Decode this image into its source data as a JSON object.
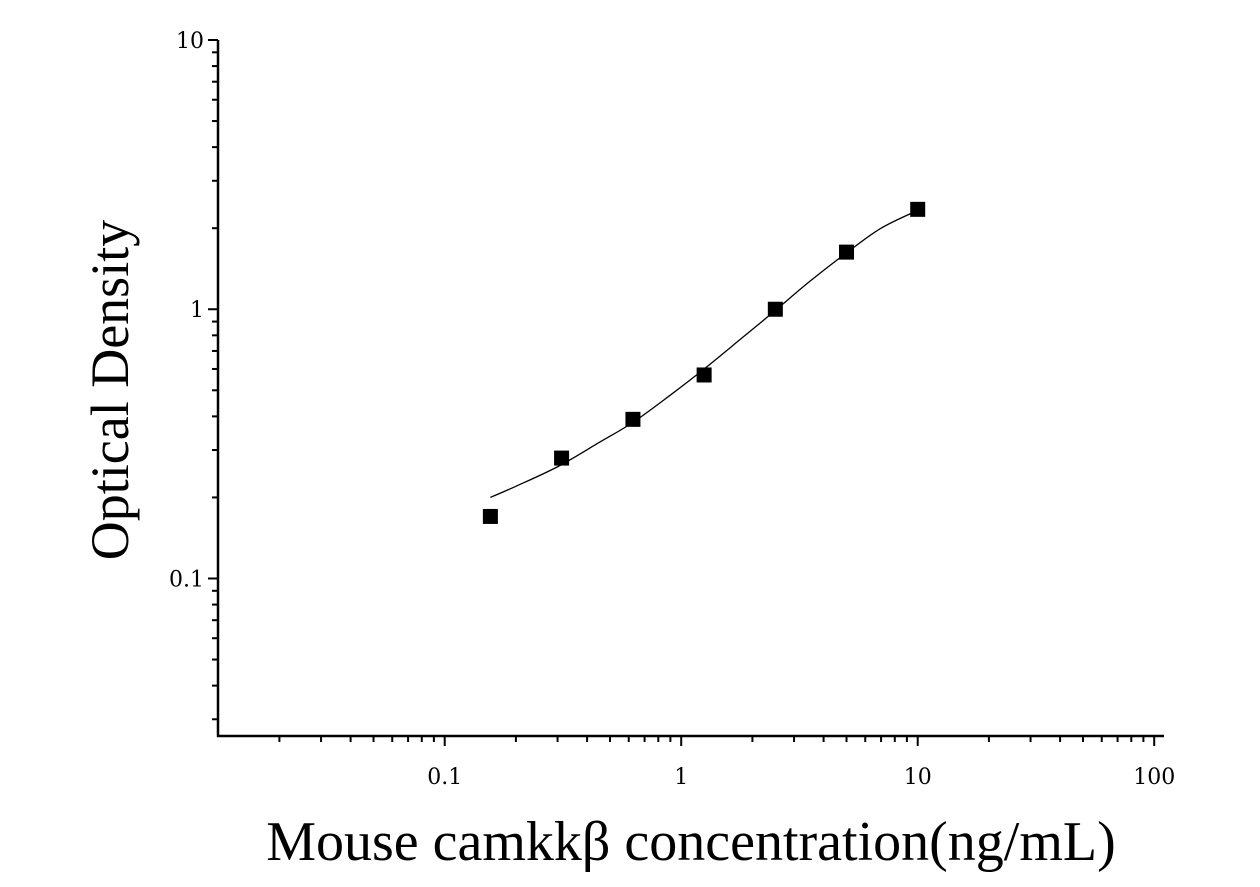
{
  "chart_data": {
    "type": "scatter",
    "title": "",
    "xlabel": "Mouse camkkβ concentration(ng/mL)",
    "ylabel": "Optical Density",
    "x_scale": "log",
    "y_scale": "log",
    "xlim": [
      0.011,
      110
    ],
    "ylim": [
      0.026,
      10
    ],
    "x_ticks": [
      {
        "value": 0.1,
        "label": "0.1"
      },
      {
        "value": 1,
        "label": "1"
      },
      {
        "value": 10,
        "label": "10"
      },
      {
        "value": 100,
        "label": "100"
      }
    ],
    "y_ticks": [
      {
        "value": 0.1,
        "label": "0.1"
      },
      {
        "value": 1,
        "label": "1"
      },
      {
        "value": 10,
        "label": "10"
      }
    ],
    "grid": false,
    "series": [
      {
        "type": "scatter",
        "marker": "square",
        "color": "#000000",
        "x": [
          0.156,
          0.312,
          0.625,
          1.25,
          2.5,
          5,
          10
        ],
        "y": [
          0.17,
          0.28,
          0.39,
          0.57,
          1.0,
          1.63,
          2.35
        ]
      },
      {
        "type": "line",
        "role": "fitted-curve",
        "color": "#000000",
        "x": [
          0.156,
          0.2,
          0.3,
          0.45,
          0.625,
          0.9,
          1.25,
          1.8,
          2.5,
          3.5,
          5,
          7,
          10
        ],
        "y": [
          0.2,
          0.22,
          0.26,
          0.32,
          0.38,
          0.48,
          0.6,
          0.78,
          0.99,
          1.27,
          1.62,
          2.0,
          2.33
        ]
      }
    ]
  }
}
